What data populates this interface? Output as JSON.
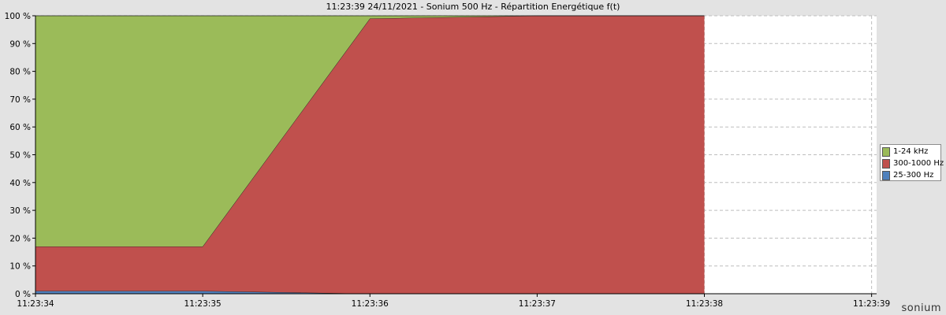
{
  "chart_data": {
    "type": "area",
    "stacked": true,
    "title": "11:23:39 24/11/2021 - Sonium 500 Hz - Répartition Energétique f(t)",
    "x": [
      "11:23:34",
      "11:23:35",
      "11:23:36",
      "11:23:37",
      "11:23:38"
    ],
    "x_ticks": [
      "11:23:34",
      "11:23:35",
      "11:23:36",
      "11:23:37",
      "11:23:38",
      "11:23:39"
    ],
    "xlim": [
      0,
      5.03
    ],
    "ylim": [
      0,
      100
    ],
    "y_ticks": [
      "0 %",
      "10 %",
      "20 %",
      "30 %",
      "40 %",
      "50 %",
      "60 %",
      "70 %",
      "80 %",
      "90 %",
      "100 %"
    ],
    "grid": true,
    "legend_position": "right",
    "series": [
      {
        "name": "25-300 Hz",
        "color": "#4f81bd",
        "values": [
          1,
          1,
          0,
          0,
          0
        ]
      },
      {
        "name": "300-1000 Hz",
        "color": "#c0504d",
        "values": [
          16,
          16,
          99,
          100,
          100
        ]
      },
      {
        "name": "1-24 kHz",
        "color": "#9bbb59",
        "values": [
          83,
          83,
          1,
          0,
          0
        ]
      }
    ]
  },
  "legend_items": [
    {
      "label": "1-24 kHz",
      "color": "#9bbb59"
    },
    {
      "label": "300-1000 Hz",
      "color": "#c0504d"
    },
    {
      "label": "25-300 Hz",
      "color": "#4f81bd"
    }
  ],
  "branding": {
    "logo_text": "sonium"
  }
}
